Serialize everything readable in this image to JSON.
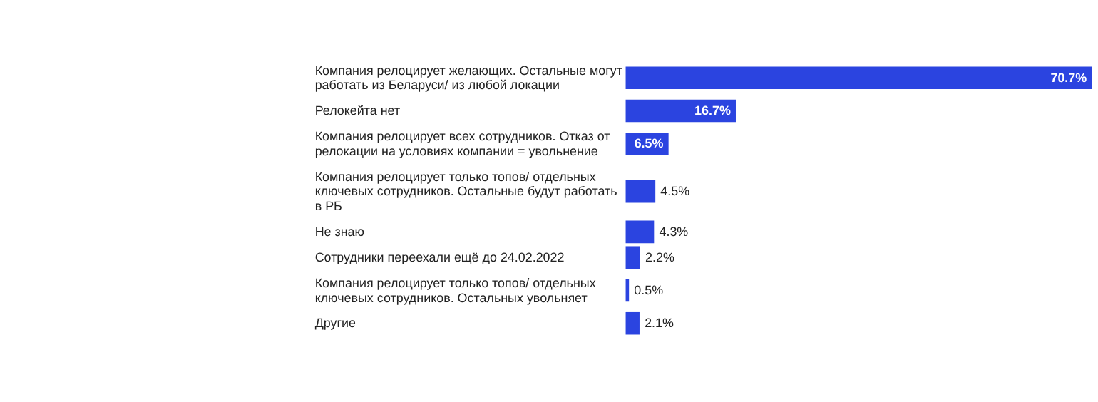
{
  "chart_data": {
    "type": "bar",
    "orientation": "horizontal",
    "color": "#2b44e0",
    "data_labels": true,
    "categories": [
      "Компания релоцирует желающих. Остальные могут работать из Беларуси/ из любой локации",
      "Релокейта нет",
      "Компания релоцирует всех сотрудников. Отказ от релокации на условиях компании = увольнение",
      "Компания релоцирует только топов/ отдельных ключевых сотрудников. Остальные будут работать в РБ",
      "Не знаю",
      "Сотрудники переехали ещё до 24.02.2022",
      "Компания релоцирует только топов/ отдельных ключевых сотрудников. Остальных увольняет",
      "Другие"
    ],
    "values": [
      70.7,
      16.7,
      6.5,
      4.5,
      4.3,
      2.2,
      0.5,
      2.1
    ],
    "value_labels": [
      "70.7%",
      "16.7%",
      "6.5%",
      "4.5%",
      "4.3%",
      "2.2%",
      "0.5%",
      "2.1%"
    ]
  }
}
